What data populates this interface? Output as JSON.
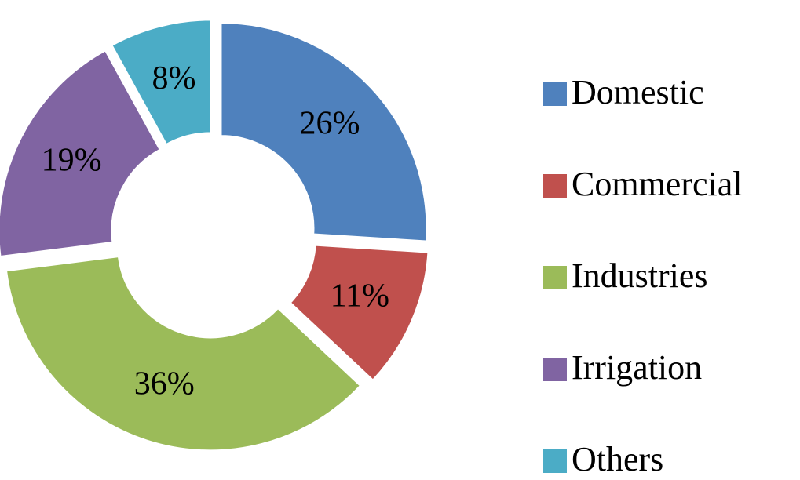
{
  "chart_data": {
    "type": "donut",
    "categories": [
      "Domestic",
      "Commercial",
      "Industries",
      "Irrigation",
      "Others"
    ],
    "values": [
      26,
      11,
      36,
      19,
      8
    ],
    "value_labels": [
      "26%",
      "11%",
      "36%",
      "19%",
      "8%"
    ],
    "colors": [
      "#4f81bd",
      "#c0504d",
      "#9bbb59",
      "#8064a2",
      "#4bacc6"
    ],
    "legend": "right"
  }
}
